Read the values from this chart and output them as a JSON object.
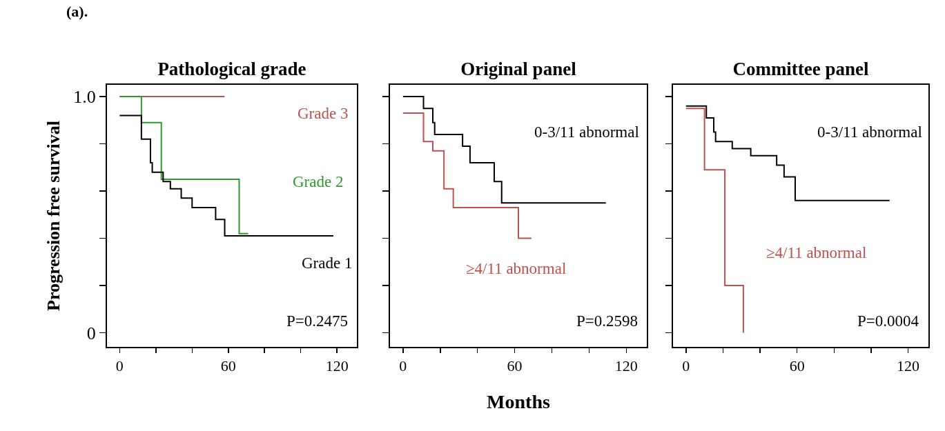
{
  "chart_data": [
    {
      "type": "step",
      "title": "Pathological grade",
      "ylabel": "Progression free survival",
      "annotations": [
        "(a).",
        "P=0.2475"
      ],
      "xlim": [
        -7,
        131
      ],
      "ylim": [
        -0.06,
        1.05
      ],
      "xticks": [
        0,
        {
          "value": 20,
          "label": null
        },
        {
          "value": 40,
          "label": null
        },
        60,
        {
          "value": 80,
          "label": null
        },
        {
          "value": 100,
          "label": null
        },
        120
      ],
      "yticks": [
        {
          "value": 0,
          "label": "0"
        },
        {
          "value": 0.2,
          "label": null
        },
        {
          "value": 0.4,
          "label": null
        },
        {
          "value": 0.6,
          "label": null
        },
        {
          "value": 0.8,
          "label": null
        },
        {
          "value": 1,
          "label": "1.0"
        }
      ],
      "grid": false,
      "legend": false,
      "series": [
        {
          "name": "Grade 3",
          "color": "#c0504d",
          "x": [
            0,
            58
          ],
          "values": [
            1.0,
            1.0
          ]
        },
        {
          "name": "Grade 2",
          "color": "#2e9a2e",
          "x": [
            0,
            12,
            23,
            66,
            71
          ],
          "values": [
            1.0,
            0.89,
            0.65,
            0.42,
            0.42
          ]
        },
        {
          "name": "Grade 1",
          "color": "#000000",
          "x": [
            0,
            12,
            17,
            18,
            24,
            28,
            34,
            40,
            53,
            58,
            118
          ],
          "values": [
            0.92,
            0.82,
            0.72,
            0.68,
            0.64,
            0.61,
            0.57,
            0.53,
            0.48,
            0.41,
            0.41
          ]
        }
      ]
    },
    {
      "type": "step",
      "title": "Original panel",
      "xlabel": "Months",
      "annotations": [
        "P=0.2598"
      ],
      "tick_labels": "x",
      "xlim": [
        -7,
        131
      ],
      "ylim": [
        -0.06,
        1.05
      ],
      "xticks": [
        0,
        {
          "value": 20,
          "label": null
        },
        {
          "value": 40,
          "label": null
        },
        60,
        {
          "value": 80,
          "label": null
        },
        {
          "value": 100,
          "label": null
        },
        120
      ],
      "yticks": [
        {
          "value": 0,
          "label": null
        },
        {
          "value": 0.2,
          "label": null
        },
        {
          "value": 0.4,
          "label": null
        },
        {
          "value": 0.6,
          "label": null
        },
        {
          "value": 0.8,
          "label": null
        },
        {
          "value": 1,
          "label": null
        }
      ],
      "grid": false,
      "legend": false,
      "series": [
        {
          "name": "0-3/11 abnormal",
          "color": "#000000",
          "x": [
            0,
            11,
            16,
            17,
            32,
            36,
            49,
            53,
            109
          ],
          "values": [
            1.0,
            0.95,
            0.89,
            0.84,
            0.79,
            0.72,
            0.64,
            0.55,
            0.55
          ]
        },
        {
          "name": "≥4/11 abnormal",
          "color": "#c0504d",
          "x": [
            0,
            11,
            16,
            22,
            27,
            62,
            69
          ],
          "values": [
            0.93,
            0.81,
            0.77,
            0.61,
            0.53,
            0.4,
            0.4
          ]
        }
      ]
    },
    {
      "type": "step",
      "title": "Committee panel",
      "annotations": [
        "P=0.0004"
      ],
      "tick_labels": "x",
      "xlim": [
        -7,
        131
      ],
      "ylim": [
        -0.06,
        1.05
      ],
      "xticks": [
        0,
        {
          "value": 20,
          "label": null
        },
        {
          "value": 40,
          "label": null
        },
        60,
        {
          "value": 80,
          "label": null
        },
        {
          "value": 100,
          "label": null
        },
        120
      ],
      "yticks": [
        {
          "value": 0,
          "label": null
        },
        {
          "value": 0.2,
          "label": null
        },
        {
          "value": 0.4,
          "label": null
        },
        {
          "value": 0.6,
          "label": null
        },
        {
          "value": 0.8,
          "label": null
        },
        {
          "value": 1,
          "label": null
        }
      ],
      "grid": false,
      "legend": false,
      "series": [
        {
          "name": "0-3/11 abnormal",
          "color": "#000000",
          "x": [
            0,
            11,
            15,
            16,
            25,
            35,
            49,
            53,
            59,
            110
          ],
          "values": [
            0.96,
            0.91,
            0.85,
            0.81,
            0.78,
            0.75,
            0.71,
            0.66,
            0.56,
            0.56
          ]
        },
        {
          "name": "≥4/11 abnormal",
          "color": "#c0504d",
          "x": [
            0,
            10,
            21,
            31
          ],
          "values": [
            0.95,
            0.69,
            0.2,
            0
          ]
        }
      ]
    }
  ]
}
